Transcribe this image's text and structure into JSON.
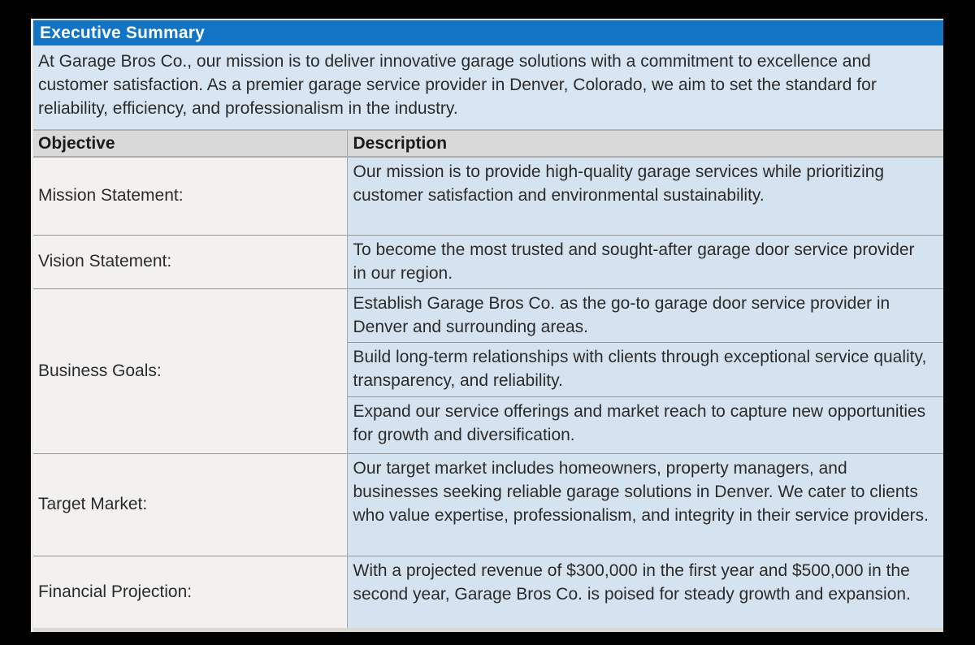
{
  "document": {
    "section_title": "Executive Summary",
    "intro": "At Garage Bros Co., our mission is to deliver innovative garage solutions with a commitment to excellence and customer satisfaction. As a premier garage service provider in Denver, Colorado, we aim to set the standard for reliability, efficiency, and professionalism in the industry."
  },
  "table": {
    "columns": [
      "Objective",
      "Description"
    ],
    "rows": [
      {
        "objective": "Mission Statement:",
        "descriptions": [
          "Our mission is to provide high-quality garage services while prioritizing customer satisfaction and environmental sustainability."
        ]
      },
      {
        "objective": "Vision Statement:",
        "descriptions": [
          "To become the most trusted and sought-after garage door service provider in our region."
        ]
      },
      {
        "objective": "Business Goals:",
        "descriptions": [
          "Establish Garage Bros Co. as the go-to garage door service provider in Denver and surrounding areas.",
          "Build long-term relationships with clients through exceptional service quality, transparency, and reliability.",
          "Expand our service offerings and market reach to capture new opportunities for growth and diversification."
        ]
      },
      {
        "objective": "Target Market:",
        "descriptions": [
          "Our target market includes homeowners, property managers, and businesses seeking reliable garage solutions in Denver. We cater to clients who value expertise, professionalism, and integrity in their service providers."
        ]
      },
      {
        "objective": "Financial Projection:",
        "descriptions": [
          "With a projected revenue of $300,000 in the first year and $500,000 in the second year, Garage Bros Co. is poised for steady growth and expansion."
        ]
      }
    ]
  },
  "colors": {
    "section_header_bg": "#1274c5",
    "section_header_text": "#ffffff",
    "intro_bg": "#d8e5f2",
    "column_header_bg": "#d9d9d9",
    "objective_cell_bg": "#f2f1f0",
    "description_cell_bg": "#d5e3f1",
    "body_text": "#2b2b2b",
    "border": "#989898",
    "frame_bg": "#000000"
  }
}
